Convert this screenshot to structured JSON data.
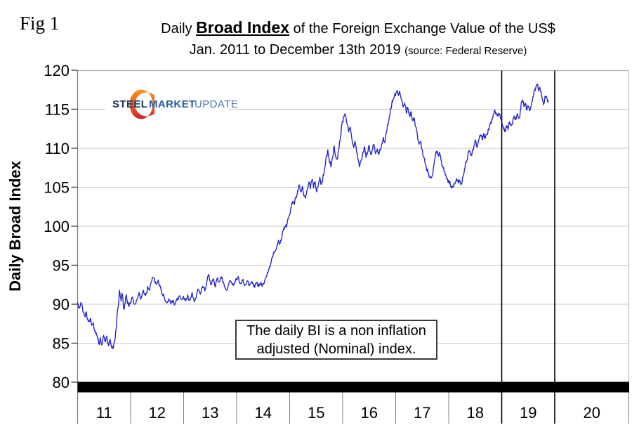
{
  "figure": {
    "label": "Fig 1"
  },
  "title": {
    "prefix": "Daily ",
    "highlight": "Broad Index",
    "suffix": " of the Foreign Exchange Value of the US$",
    "line2": "Jan. 2011 to December 13th 2019 ",
    "source": "(source: Federal Reserve)"
  },
  "logo": {
    "steel": "STEEL",
    "market": "MARKET",
    "update": "UPDATE",
    "navy": "#17365d",
    "blue": "#2b5aa0",
    "crescent_orange": "#f7941e",
    "crescent_red": "#ce2029"
  },
  "annotation": {
    "line1": "The daily BI is a non inflation",
    "line2": "adjusted (Nominal) index."
  },
  "chart_data": {
    "type": "line",
    "title": "Daily Broad Index of the Foreign Exchange Value of the US$",
    "subtitle": "Jan. 2011 to December 13th 2019 (source: Federal Reserve)",
    "ylabel": "Daily Broad Index",
    "ylim": [
      80,
      120
    ],
    "y_ticks": [
      80,
      85,
      90,
      95,
      100,
      105,
      110,
      115,
      120
    ],
    "x_tick_labels": [
      "11",
      "12",
      "13",
      "14",
      "15",
      "16",
      "17",
      "18",
      "19",
      "20"
    ],
    "grid": true,
    "line_color": "#2323cd",
    "gridline_color": "#c9c9c9",
    "baseline_bar": {
      "at_value": 80,
      "color": "#000000"
    },
    "vertical_marker_years_t": [
      8,
      9
    ],
    "data_end_label": "December 13th 2019",
    "series": [
      {
        "name": "Daily Broad Index (nominal)",
        "points_t_years_since_2011_value": [
          [
            0.0,
            90.2
          ],
          [
            0.04,
            89.5
          ],
          [
            0.07,
            90.0
          ],
          [
            0.1,
            89.0
          ],
          [
            0.14,
            88.4
          ],
          [
            0.17,
            88.8
          ],
          [
            0.2,
            87.8
          ],
          [
            0.24,
            88.2
          ],
          [
            0.27,
            87.3
          ],
          [
            0.3,
            87.6
          ],
          [
            0.33,
            86.6
          ],
          [
            0.37,
            85.9
          ],
          [
            0.4,
            84.9
          ],
          [
            0.43,
            85.7
          ],
          [
            0.46,
            84.8
          ],
          [
            0.49,
            86.0
          ],
          [
            0.52,
            85.2
          ],
          [
            0.55,
            85.9
          ],
          [
            0.58,
            84.8
          ],
          [
            0.61,
            85.5
          ],
          [
            0.64,
            84.5
          ],
          [
            0.67,
            84.3
          ],
          [
            0.7,
            85.2
          ],
          [
            0.73,
            87.0
          ],
          [
            0.76,
            89.5
          ],
          [
            0.79,
            91.8
          ],
          [
            0.82,
            90.4
          ],
          [
            0.84,
            91.3
          ],
          [
            0.87,
            89.4
          ],
          [
            0.89,
            90.0
          ],
          [
            0.92,
            91.2
          ],
          [
            0.94,
            90.1
          ],
          [
            0.97,
            89.7
          ],
          [
            1.0,
            90.2
          ],
          [
            1.04,
            90.8
          ],
          [
            1.08,
            90.0
          ],
          [
            1.12,
            90.6
          ],
          [
            1.16,
            91.5
          ],
          [
            1.2,
            90.8
          ],
          [
            1.24,
            91.8
          ],
          [
            1.28,
            91.1
          ],
          [
            1.32,
            92.3
          ],
          [
            1.36,
            91.8
          ],
          [
            1.4,
            93.0
          ],
          [
            1.44,
            93.4
          ],
          [
            1.48,
            92.6
          ],
          [
            1.52,
            93.1
          ],
          [
            1.56,
            92.3
          ],
          [
            1.6,
            91.3
          ],
          [
            1.64,
            90.7
          ],
          [
            1.68,
            90.2
          ],
          [
            1.72,
            90.7
          ],
          [
            1.76,
            90.1
          ],
          [
            1.8,
            90.5
          ],
          [
            1.84,
            90.1
          ],
          [
            1.88,
            90.8
          ],
          [
            1.92,
            91.1
          ],
          [
            1.96,
            90.6
          ],
          [
            2.0,
            91.0
          ],
          [
            2.04,
            90.4
          ],
          [
            2.08,
            91.2
          ],
          [
            2.12,
            90.5
          ],
          [
            2.16,
            91.5
          ],
          [
            2.2,
            90.3
          ],
          [
            2.24,
            90.9
          ],
          [
            2.28,
            91.9
          ],
          [
            2.32,
            91.3
          ],
          [
            2.36,
            92.3
          ],
          [
            2.4,
            91.7
          ],
          [
            2.44,
            92.9
          ],
          [
            2.48,
            93.7
          ],
          [
            2.52,
            92.5
          ],
          [
            2.56,
            93.3
          ],
          [
            2.6,
            92.2
          ],
          [
            2.64,
            93.4
          ],
          [
            2.68,
            92.9
          ],
          [
            2.72,
            93.5
          ],
          [
            2.76,
            92.6
          ],
          [
            2.8,
            91.9
          ],
          [
            2.84,
            92.4
          ],
          [
            2.88,
            93.0
          ],
          [
            2.92,
            92.5
          ],
          [
            2.96,
            92.8
          ],
          [
            3.0,
            93.1
          ],
          [
            3.04,
            93.3
          ],
          [
            3.08,
            92.7
          ],
          [
            3.12,
            93.2
          ],
          [
            3.16,
            92.5
          ],
          [
            3.2,
            93.0
          ],
          [
            3.24,
            92.4
          ],
          [
            3.28,
            92.8
          ],
          [
            3.32,
            92.3
          ],
          [
            3.36,
            92.7
          ],
          [
            3.4,
            92.3
          ],
          [
            3.44,
            92.6
          ],
          [
            3.48,
            92.3
          ],
          [
            3.52,
            92.7
          ],
          [
            3.56,
            93.5
          ],
          [
            3.6,
            94.3
          ],
          [
            3.64,
            95.1
          ],
          [
            3.68,
            96.0
          ],
          [
            3.72,
            96.8
          ],
          [
            3.76,
            97.5
          ],
          [
            3.79,
            98.2
          ],
          [
            3.82,
            97.8
          ],
          [
            3.86,
            98.9
          ],
          [
            3.9,
            99.6
          ],
          [
            3.93,
            100.2
          ],
          [
            3.96,
            100.7
          ],
          [
            4.0,
            101.5
          ],
          [
            4.03,
            102.4
          ],
          [
            4.06,
            103.2
          ],
          [
            4.09,
            102.8
          ],
          [
            4.12,
            103.8
          ],
          [
            4.15,
            104.6
          ],
          [
            4.18,
            105.3
          ],
          [
            4.21,
            104.4
          ],
          [
            4.24,
            105.1
          ],
          [
            4.27,
            103.9
          ],
          [
            4.3,
            103.6
          ],
          [
            4.33,
            104.6
          ],
          [
            4.36,
            105.6
          ],
          [
            4.39,
            104.8
          ],
          [
            4.42,
            105.9
          ],
          [
            4.45,
            104.9
          ],
          [
            4.48,
            105.7
          ],
          [
            4.51,
            104.4
          ],
          [
            4.54,
            105.3
          ],
          [
            4.57,
            106.3
          ],
          [
            4.6,
            105.4
          ],
          [
            4.63,
            106.6
          ],
          [
            4.66,
            107.3
          ],
          [
            4.69,
            108.9
          ],
          [
            4.72,
            109.8
          ],
          [
            4.75,
            108.3
          ],
          [
            4.78,
            107.6
          ],
          [
            4.81,
            108.8
          ],
          [
            4.84,
            110.3
          ],
          [
            4.87,
            109.0
          ],
          [
            4.9,
            108.6
          ],
          [
            4.93,
            109.9
          ],
          [
            4.96,
            111.5
          ],
          [
            4.98,
            112.9
          ],
          [
            5.0,
            113.5
          ],
          [
            5.02,
            114.0
          ],
          [
            5.05,
            114.3
          ],
          [
            5.08,
            113.2
          ],
          [
            5.11,
            112.1
          ],
          [
            5.14,
            112.7
          ],
          [
            5.17,
            111.4
          ],
          [
            5.2,
            110.4
          ],
          [
            5.23,
            110.9
          ],
          [
            5.26,
            109.6
          ],
          [
            5.29,
            108.6
          ],
          [
            5.32,
            107.6
          ],
          [
            5.35,
            108.5
          ],
          [
            5.38,
            109.4
          ],
          [
            5.41,
            110.2
          ],
          [
            5.44,
            108.8
          ],
          [
            5.47,
            109.5
          ],
          [
            5.5,
            110.3
          ],
          [
            5.53,
            109.2
          ],
          [
            5.56,
            109.8
          ],
          [
            5.59,
            110.5
          ],
          [
            5.62,
            109.3
          ],
          [
            5.65,
            109.9
          ],
          [
            5.68,
            109.2
          ],
          [
            5.71,
            109.8
          ],
          [
            5.74,
            110.6
          ],
          [
            5.77,
            111.4
          ],
          [
            5.8,
            110.9
          ],
          [
            5.83,
            112.1
          ],
          [
            5.86,
            113.2
          ],
          [
            5.89,
            114.3
          ],
          [
            5.92,
            115.3
          ],
          [
            5.95,
            116.2
          ],
          [
            5.98,
            116.8
          ],
          [
            6.0,
            117.0
          ],
          [
            6.03,
            117.4
          ],
          [
            6.05,
            116.8
          ],
          [
            6.08,
            117.1
          ],
          [
            6.11,
            116.2
          ],
          [
            6.14,
            115.3
          ],
          [
            6.17,
            115.8
          ],
          [
            6.2,
            114.5
          ],
          [
            6.23,
            115.1
          ],
          [
            6.26,
            114.2
          ],
          [
            6.29,
            114.7
          ],
          [
            6.32,
            113.6
          ],
          [
            6.35,
            113.9
          ],
          [
            6.38,
            112.7
          ],
          [
            6.41,
            111.6
          ],
          [
            6.44,
            110.5
          ],
          [
            6.47,
            110.9
          ],
          [
            6.5,
            109.8
          ],
          [
            6.53,
            108.9
          ],
          [
            6.56,
            108.0
          ],
          [
            6.59,
            107.2
          ],
          [
            6.62,
            106.8
          ],
          [
            6.65,
            106.4
          ],
          [
            6.68,
            106.3
          ],
          [
            6.71,
            107.4
          ],
          [
            6.74,
            108.7
          ],
          [
            6.77,
            109.6
          ],
          [
            6.8,
            109.1
          ],
          [
            6.83,
            109.5
          ],
          [
            6.86,
            108.4
          ],
          [
            6.89,
            107.6
          ],
          [
            6.92,
            107.0
          ],
          [
            6.95,
            106.5
          ],
          [
            6.98,
            106.0
          ],
          [
            7.0,
            105.8
          ],
          [
            7.03,
            105.4
          ],
          [
            7.06,
            105.1
          ],
          [
            7.09,
            105.0
          ],
          [
            7.12,
            105.5
          ],
          [
            7.15,
            106.1
          ],
          [
            7.18,
            105.6
          ],
          [
            7.21,
            105.9
          ],
          [
            7.24,
            105.4
          ],
          [
            7.27,
            106.4
          ],
          [
            7.3,
            107.3
          ],
          [
            7.33,
            108.3
          ],
          [
            7.36,
            109.0
          ],
          [
            7.39,
            109.6
          ],
          [
            7.42,
            109.1
          ],
          [
            7.45,
            109.8
          ],
          [
            7.48,
            110.4
          ],
          [
            7.51,
            110.9
          ],
          [
            7.54,
            110.3
          ],
          [
            7.57,
            111.1
          ],
          [
            7.6,
            111.7
          ],
          [
            7.63,
            111.1
          ],
          [
            7.66,
            111.9
          ],
          [
            7.69,
            111.3
          ],
          [
            7.72,
            111.8
          ],
          [
            7.75,
            112.5
          ],
          [
            7.78,
            113.1
          ],
          [
            7.81,
            113.7
          ],
          [
            7.84,
            114.3
          ],
          [
            7.87,
            114.9
          ],
          [
            7.9,
            114.4
          ],
          [
            7.93,
            114.1
          ],
          [
            7.96,
            114.4
          ],
          [
            7.98,
            113.8
          ],
          [
            8.0,
            113.4
          ],
          [
            8.03,
            112.6
          ],
          [
            8.06,
            112.1
          ],
          [
            8.09,
            112.9
          ],
          [
            8.12,
            112.4
          ],
          [
            8.15,
            113.3
          ],
          [
            8.18,
            112.9
          ],
          [
            8.21,
            113.6
          ],
          [
            8.24,
            114.1
          ],
          [
            8.27,
            113.7
          ],
          [
            8.3,
            114.4
          ],
          [
            8.33,
            113.9
          ],
          [
            8.36,
            115.1
          ],
          [
            8.39,
            116.2
          ],
          [
            8.42,
            115.3
          ],
          [
            8.45,
            115.7
          ],
          [
            8.47,
            114.9
          ],
          [
            8.5,
            115.4
          ],
          [
            8.53,
            114.8
          ],
          [
            8.56,
            115.7
          ],
          [
            8.59,
            116.6
          ],
          [
            8.62,
            117.4
          ],
          [
            8.65,
            118.0
          ],
          [
            8.68,
            118.2
          ],
          [
            8.7,
            117.4
          ],
          [
            8.72,
            117.8
          ],
          [
            8.75,
            116.9
          ],
          [
            8.78,
            116.1
          ],
          [
            8.8,
            115.8
          ],
          [
            8.83,
            116.7
          ],
          [
            8.86,
            116.3
          ],
          [
            8.88,
            115.9
          ]
        ]
      }
    ]
  }
}
